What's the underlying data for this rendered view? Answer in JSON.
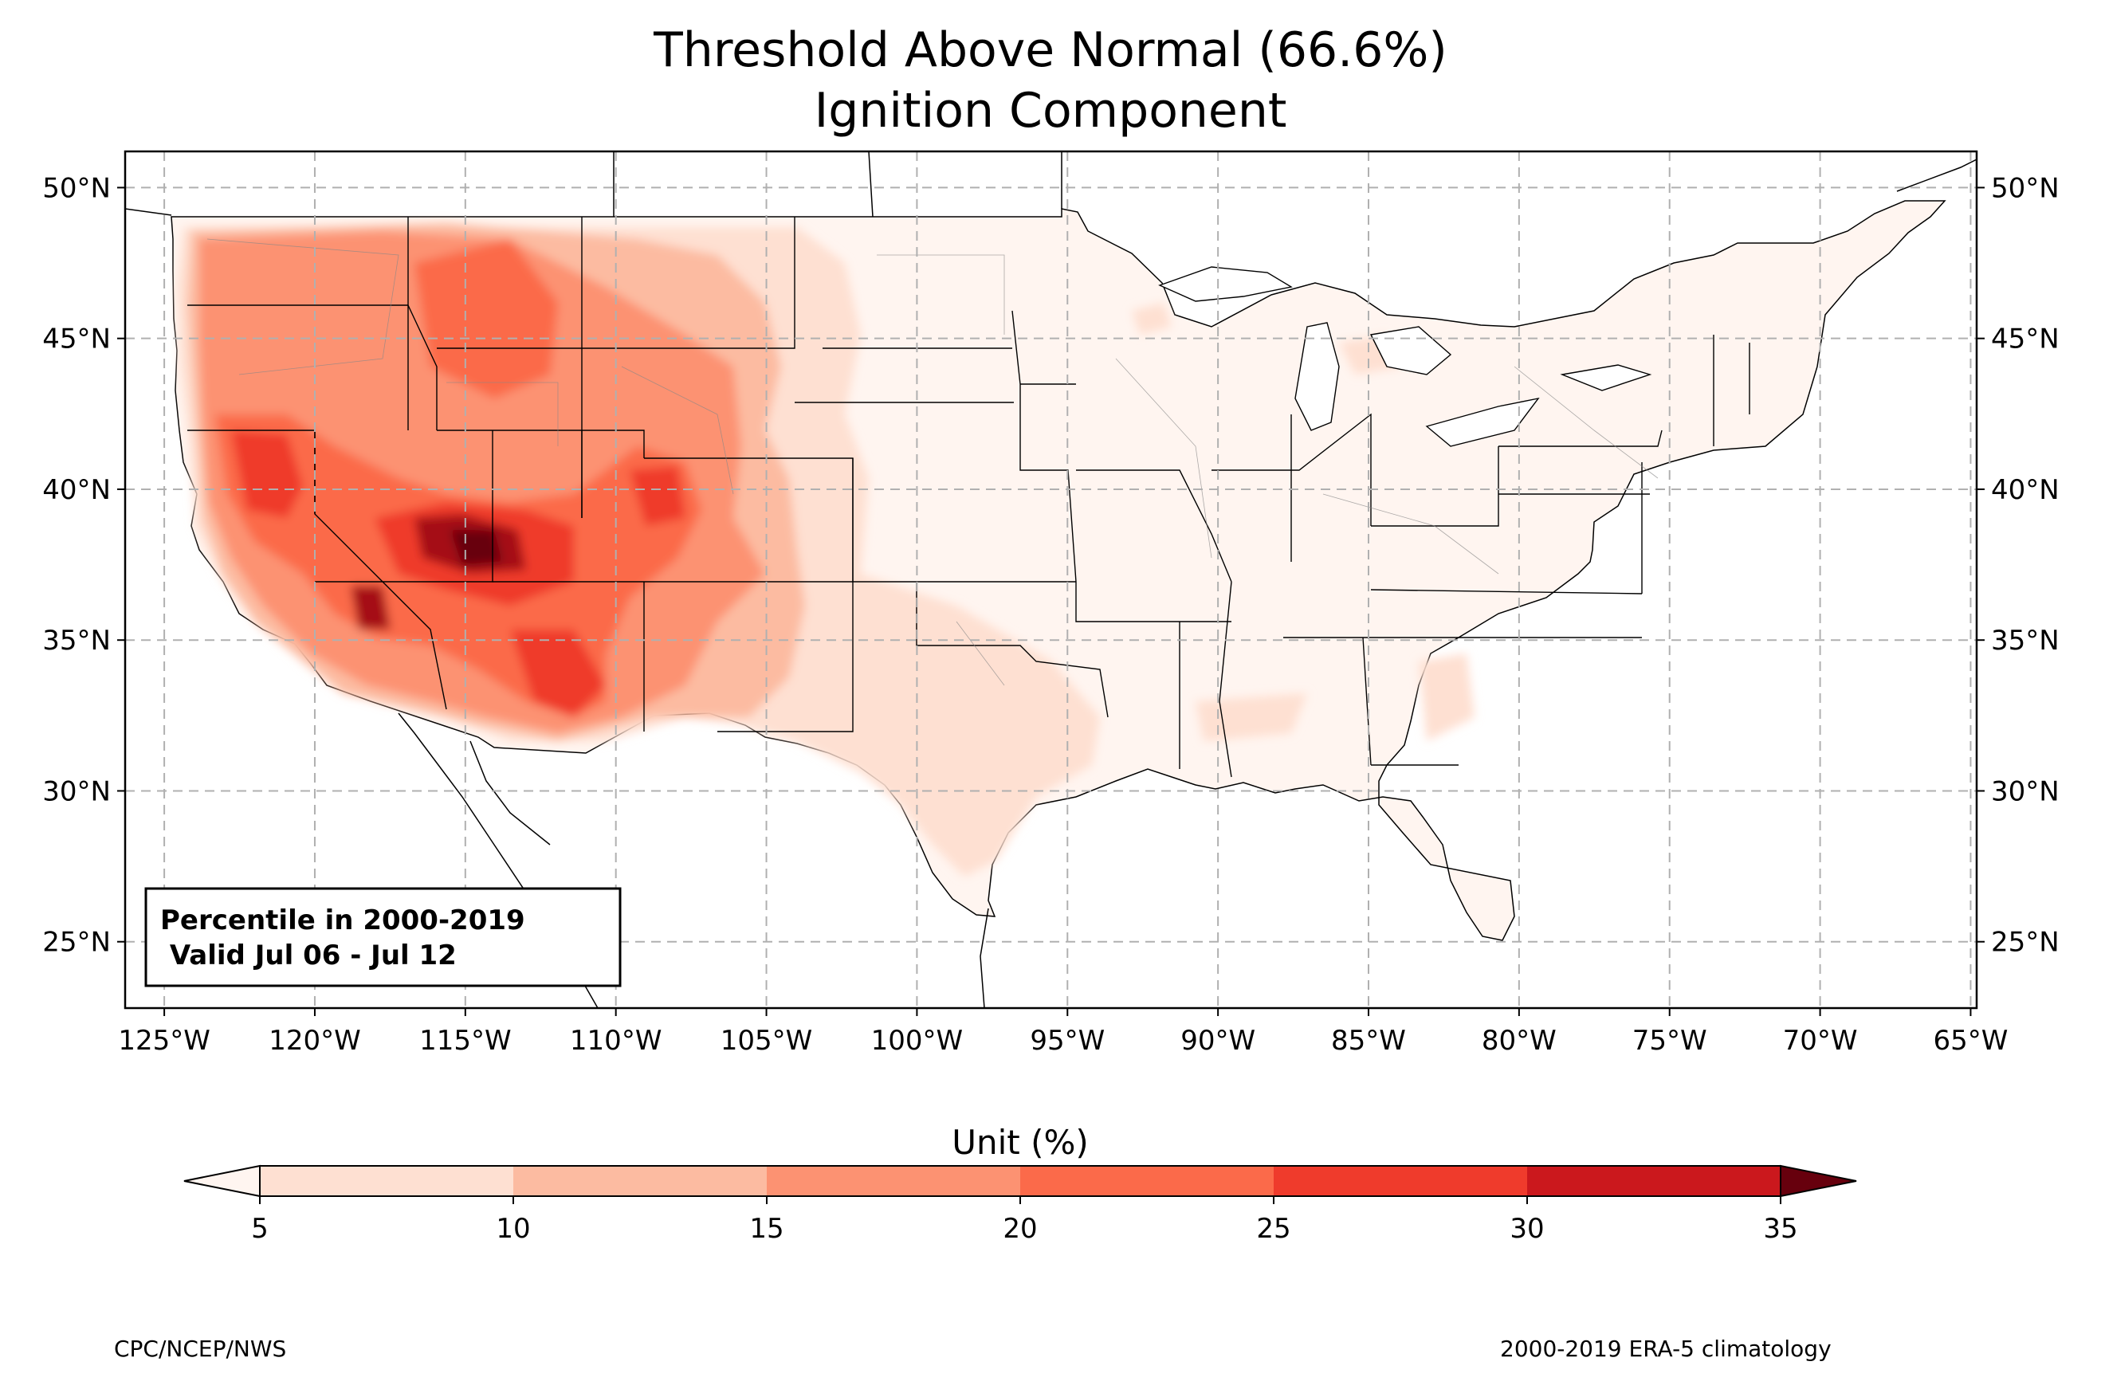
{
  "title": {
    "line1": "Threshold Above Normal (66.6%)",
    "line2": "Ignition Component"
  },
  "map": {
    "lon_ticks": [
      "125°W",
      "120°W",
      "115°W",
      "110°W",
      "105°W",
      "100°W",
      "95°W",
      "90°W",
      "85°W",
      "80°W",
      "75°W",
      "70°W",
      "65°W"
    ],
    "lat_ticks": [
      "25°N",
      "30°N",
      "35°N",
      "40°N",
      "45°N",
      "50°N"
    ],
    "lon_range": [
      -126.3,
      -64.8
    ],
    "lat_range": [
      22.8,
      51.2
    ],
    "projection": "PlateCarree",
    "grid": true,
    "info_box": {
      "line1": "Percentile in 2000-2019",
      "line2": " Valid Jul 06 - Jul 12"
    }
  },
  "colorbar": {
    "label": "Unit (%)",
    "ticks": [
      "5",
      "10",
      "15",
      "20",
      "25",
      "30",
      "35"
    ],
    "levels": [
      5,
      10,
      15,
      20,
      25,
      30,
      35
    ],
    "colors": [
      "#fee0d2",
      "#fcbba1",
      "#fc9272",
      "#fb6a4a",
      "#ef3b2c",
      "#cb181d",
      "#a50f15",
      "#67000d"
    ],
    "under_color": "#fff5f0",
    "over_color": "#67000d",
    "extend": "both"
  },
  "footer": {
    "left": "CPC/NCEP/NWS",
    "right": "2000-2019 ERA-5 climatology"
  }
}
